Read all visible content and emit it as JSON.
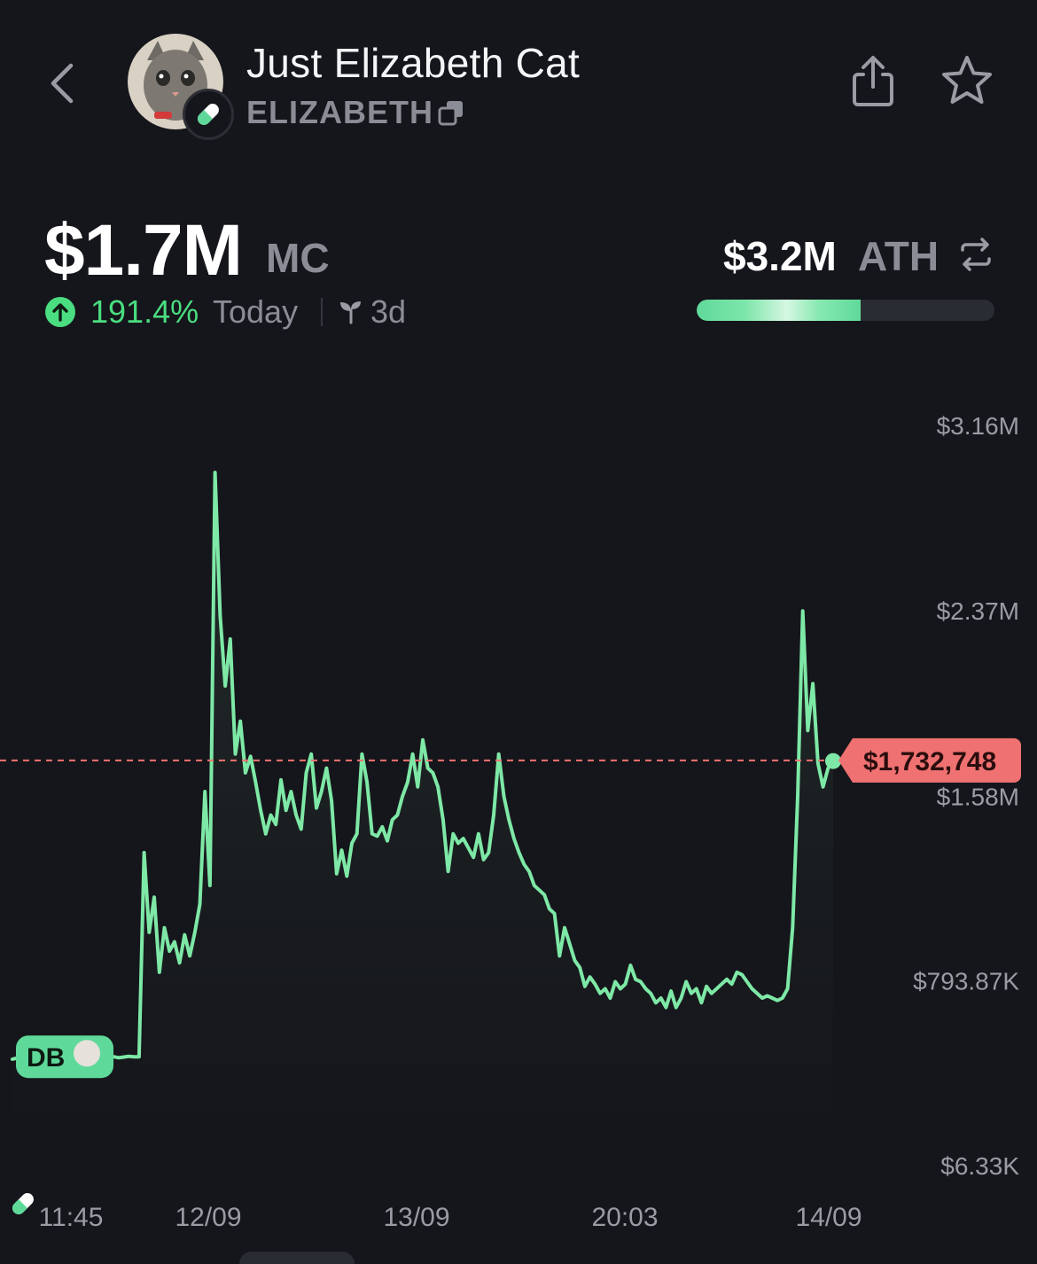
{
  "header": {
    "name": "Just Elizabeth Cat",
    "ticker": "ELIZABETH"
  },
  "stats": {
    "market_cap": "$1.7M",
    "market_cap_label": "MC",
    "change_pct": "191.4%",
    "change_period": "Today",
    "age": "3d",
    "ath_value": "$3.2M",
    "ath_label": "ATH",
    "ath_progress": 0.55
  },
  "colors": {
    "background": "#15161b",
    "accent_green": "#4ade80",
    "line_green": "#7ee8a6",
    "price_tag_red": "#f07171",
    "muted_text": "#8b8d96"
  },
  "icons": [
    "back-icon",
    "pill-icon",
    "copy-icon",
    "share-icon",
    "star-icon",
    "up-arrow-icon",
    "sprout-icon",
    "swap-icon"
  ],
  "chart_data": {
    "type": "area",
    "y_tick_labels": [
      "$3.16M",
      "$2.37M",
      "$1.58M",
      "$793.87K",
      "$6.33K"
    ],
    "y_ticks": [
      3160000,
      2370000,
      1580000,
      793870,
      6330
    ],
    "ylim": [
      6330,
      3160000
    ],
    "x_tick_labels": [
      "11:45",
      "12/09",
      "13/09",
      "20:03",
      "14/09"
    ],
    "current_price_label": "$1,732,748",
    "current_price": 1732748,
    "marker_label": "DB",
    "series": [
      {
        "values": [
          460000,
          465000,
          470000,
          462000,
          466000,
          540000,
          500000,
          480000,
          470000,
          468000,
          465000,
          462000,
          464000,
          466000,
          463000,
          465000,
          467000,
          464000,
          466000,
          468000,
          470000,
          466000,
          469000,
          472000,
          470000,
          470000,
          1340000,
          1000000,
          1150000,
          830000,
          1020000,
          920000,
          960000,
          870000,
          990000,
          900000,
          1000000,
          1120000,
          1600000,
          1200000,
          2960000,
          2350000,
          2050000,
          2250000,
          1760000,
          1900000,
          1680000,
          1750000,
          1640000,
          1520000,
          1420000,
          1500000,
          1460000,
          1650000,
          1520000,
          1600000,
          1500000,
          1440000,
          1680000,
          1760000,
          1530000,
          1600000,
          1700000,
          1560000,
          1250000,
          1350000,
          1240000,
          1380000,
          1420000,
          1760000,
          1640000,
          1420000,
          1410000,
          1450000,
          1390000,
          1480000,
          1500000,
          1580000,
          1640000,
          1760000,
          1620000,
          1820000,
          1700000,
          1680000,
          1620000,
          1480000,
          1260000,
          1420000,
          1380000,
          1400000,
          1360000,
          1320000,
          1420000,
          1310000,
          1340000,
          1500000,
          1760000,
          1580000,
          1480000,
          1400000,
          1340000,
          1290000,
          1260000,
          1200000,
          1180000,
          1160000,
          1100000,
          1080000,
          900000,
          1020000,
          950000,
          880000,
          850000,
          770000,
          810000,
          780000,
          740000,
          760000,
          720000,
          790000,
          760000,
          780000,
          860000,
          800000,
          790000,
          760000,
          740000,
          700000,
          720000,
          680000,
          750000,
          680000,
          720000,
          790000,
          740000,
          760000,
          700000,
          770000,
          740000,
          760000,
          780000,
          800000,
          780000,
          830000,
          820000,
          790000,
          760000,
          740000,
          720000,
          730000,
          720000,
          710000,
          720000,
          760000,
          1020000,
          1580000,
          2370000,
          1860000,
          2060000,
          1720000,
          1620000,
          1700000,
          1730000
        ]
      }
    ],
    "grid": false,
    "legend": "none"
  }
}
